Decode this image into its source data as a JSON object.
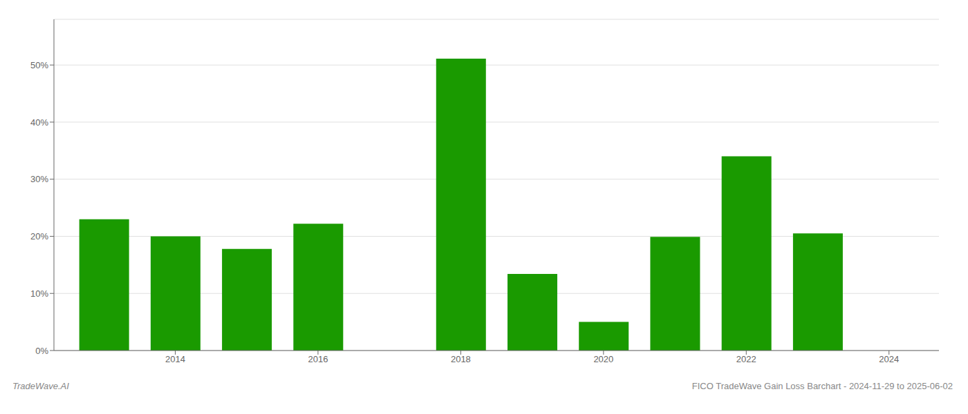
{
  "chart_data": {
    "type": "bar",
    "x": [
      2013,
      2014,
      2015,
      2016,
      2017,
      2018,
      2019,
      2020,
      2021,
      2022,
      2023,
      2024
    ],
    "values": [
      0.23,
      0.2,
      0.178,
      0.222,
      null,
      0.511,
      0.134,
      0.05,
      0.199,
      0.34,
      0.205,
      null
    ],
    "color": "#1a9a00",
    "xlim": [
      2012.3,
      2024.7
    ],
    "xticks": [
      2014,
      2016,
      2018,
      2020,
      2022,
      2024
    ],
    "ylim": [
      0,
      0.58
    ],
    "yticks": [
      {
        "value": 0.0,
        "label": "0%"
      },
      {
        "value": 0.1,
        "label": "10%"
      },
      {
        "value": 0.2,
        "label": "20%"
      },
      {
        "value": 0.3,
        "label": "30%"
      },
      {
        "value": 0.4,
        "label": "40%"
      },
      {
        "value": 0.5,
        "label": "50%"
      }
    ],
    "grid": "y",
    "annotations": [
      "TradeWave.AI",
      "FICO TradeWave Gain Loss Barchart - 2024-11-29 to 2025-06-02"
    ]
  }
}
